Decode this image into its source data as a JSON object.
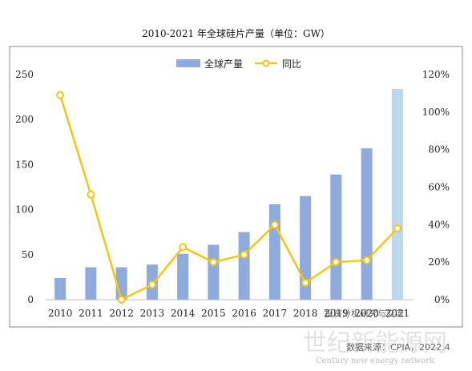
{
  "chart_data": {
    "type": "bar",
    "title": "2010-2021 年全球硅片产量（单位：GW）",
    "categories": [
      "2010",
      "2011",
      "2012",
      "2013",
      "2014",
      "2015",
      "2016",
      "2017",
      "2018",
      "2019",
      "2020",
      "2021"
    ],
    "series": [
      {
        "name": "全球产量",
        "type": "bar",
        "axis": "left",
        "values": [
          24,
          36,
          36,
          39,
          51,
          61,
          75,
          106,
          115,
          139,
          168,
          234
        ],
        "color": "#8faadc",
        "highlight_last_color": "#bdd7ee"
      },
      {
        "name": "同比",
        "type": "line",
        "axis": "right",
        "values": [
          109,
          56,
          0,
          8,
          28,
          20,
          24,
          40,
          9,
          20,
          21,
          38
        ],
        "unit": "%",
        "color": "#f2c80f"
      }
    ],
    "ylim_left": [
      0,
      250
    ],
    "yticks_left": [
      "0",
      "50",
      "100",
      "150",
      "200",
      "250"
    ],
    "ylim_right": [
      0,
      120
    ],
    "yticks_right": [
      "0%",
      "20%",
      "40%",
      "60%",
      "80%",
      "100%",
      "120%"
    ],
    "legend_position": "top-center",
    "grid": false
  },
  "watermark": {
    "cn": "世纪新能源网",
    "en": "Century new energy network",
    "overlay": "投资分析研究与交流"
  },
  "source_note": "数据来源：CPIA，2022.4"
}
